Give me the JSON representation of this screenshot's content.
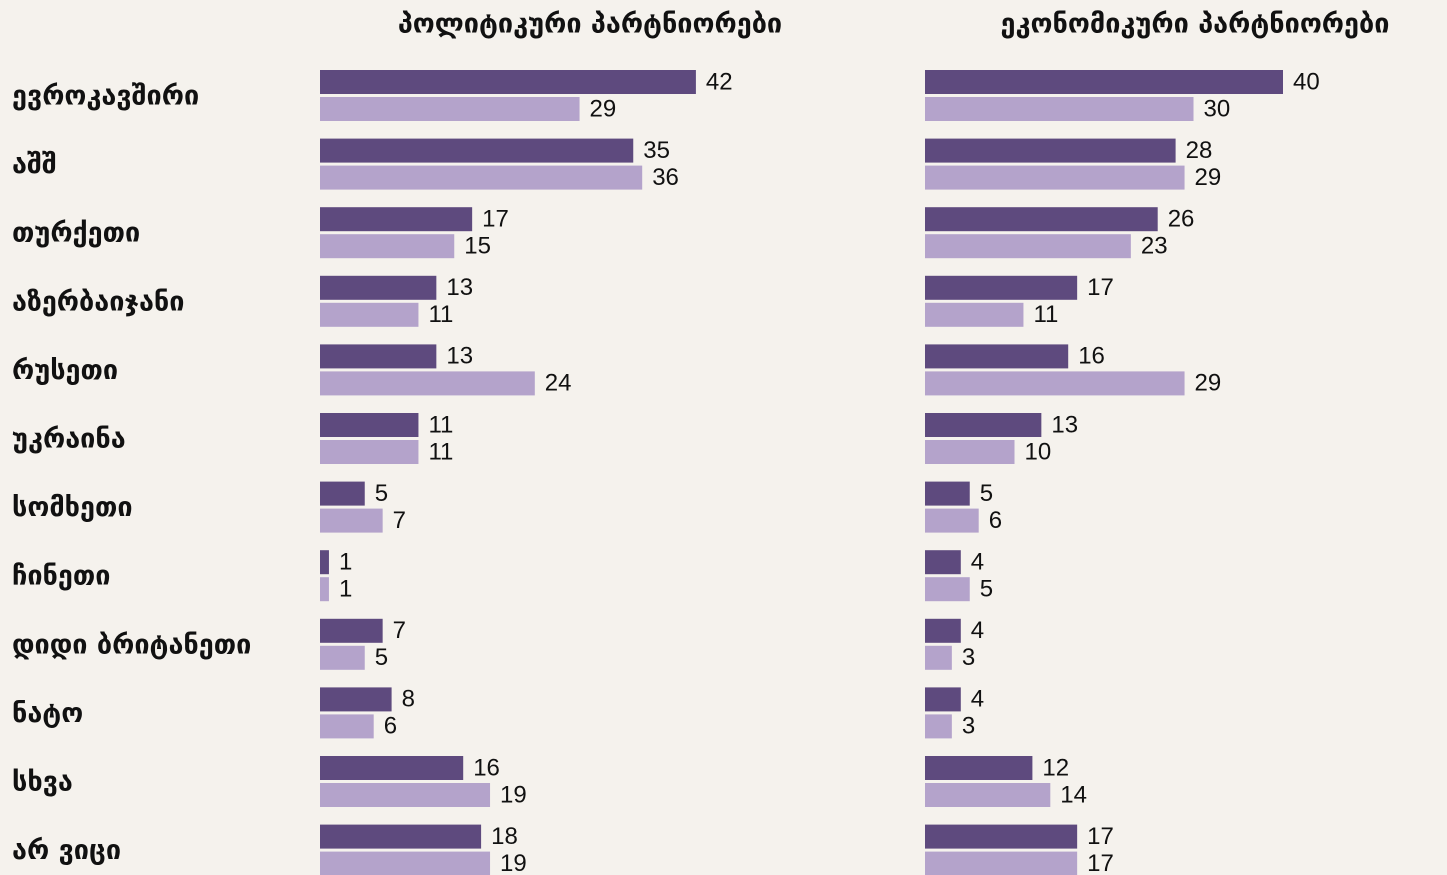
{
  "chart_data": {
    "type": "bar",
    "categories": [
      "ევროკავშირი",
      "აშშ",
      "თურქეთი",
      "აზერბაიჯანი",
      "რუსეთი",
      "უკრაინა",
      "სომხეთი",
      "ჩინეთი",
      "დიდი ბრიტანეთი",
      "ნატო",
      "სხვა",
      "არ ვიცი"
    ],
    "panels": [
      {
        "title": "პოლიტიკური პარტნიორები",
        "series": [
          {
            "color": "#5e4a7e",
            "values": [
              42,
              35,
              17,
              13,
              13,
              11,
              5,
              1,
              7,
              8,
              16,
              18
            ]
          },
          {
            "color": "#b4a3cb",
            "values": [
              29,
              36,
              15,
              11,
              24,
              11,
              7,
              1,
              5,
              6,
              19,
              19
            ]
          }
        ]
      },
      {
        "title": "ეკონომიკური პარტნიორები",
        "series": [
          {
            "color": "#5e4a7e",
            "values": [
              40,
              28,
              26,
              17,
              16,
              13,
              5,
              4,
              4,
              4,
              12,
              17
            ]
          },
          {
            "color": "#b4a3cb",
            "values": [
              30,
              29,
              23,
              11,
              29,
              10,
              6,
              5,
              3,
              3,
              14,
              17
            ]
          }
        ]
      }
    ]
  }
}
